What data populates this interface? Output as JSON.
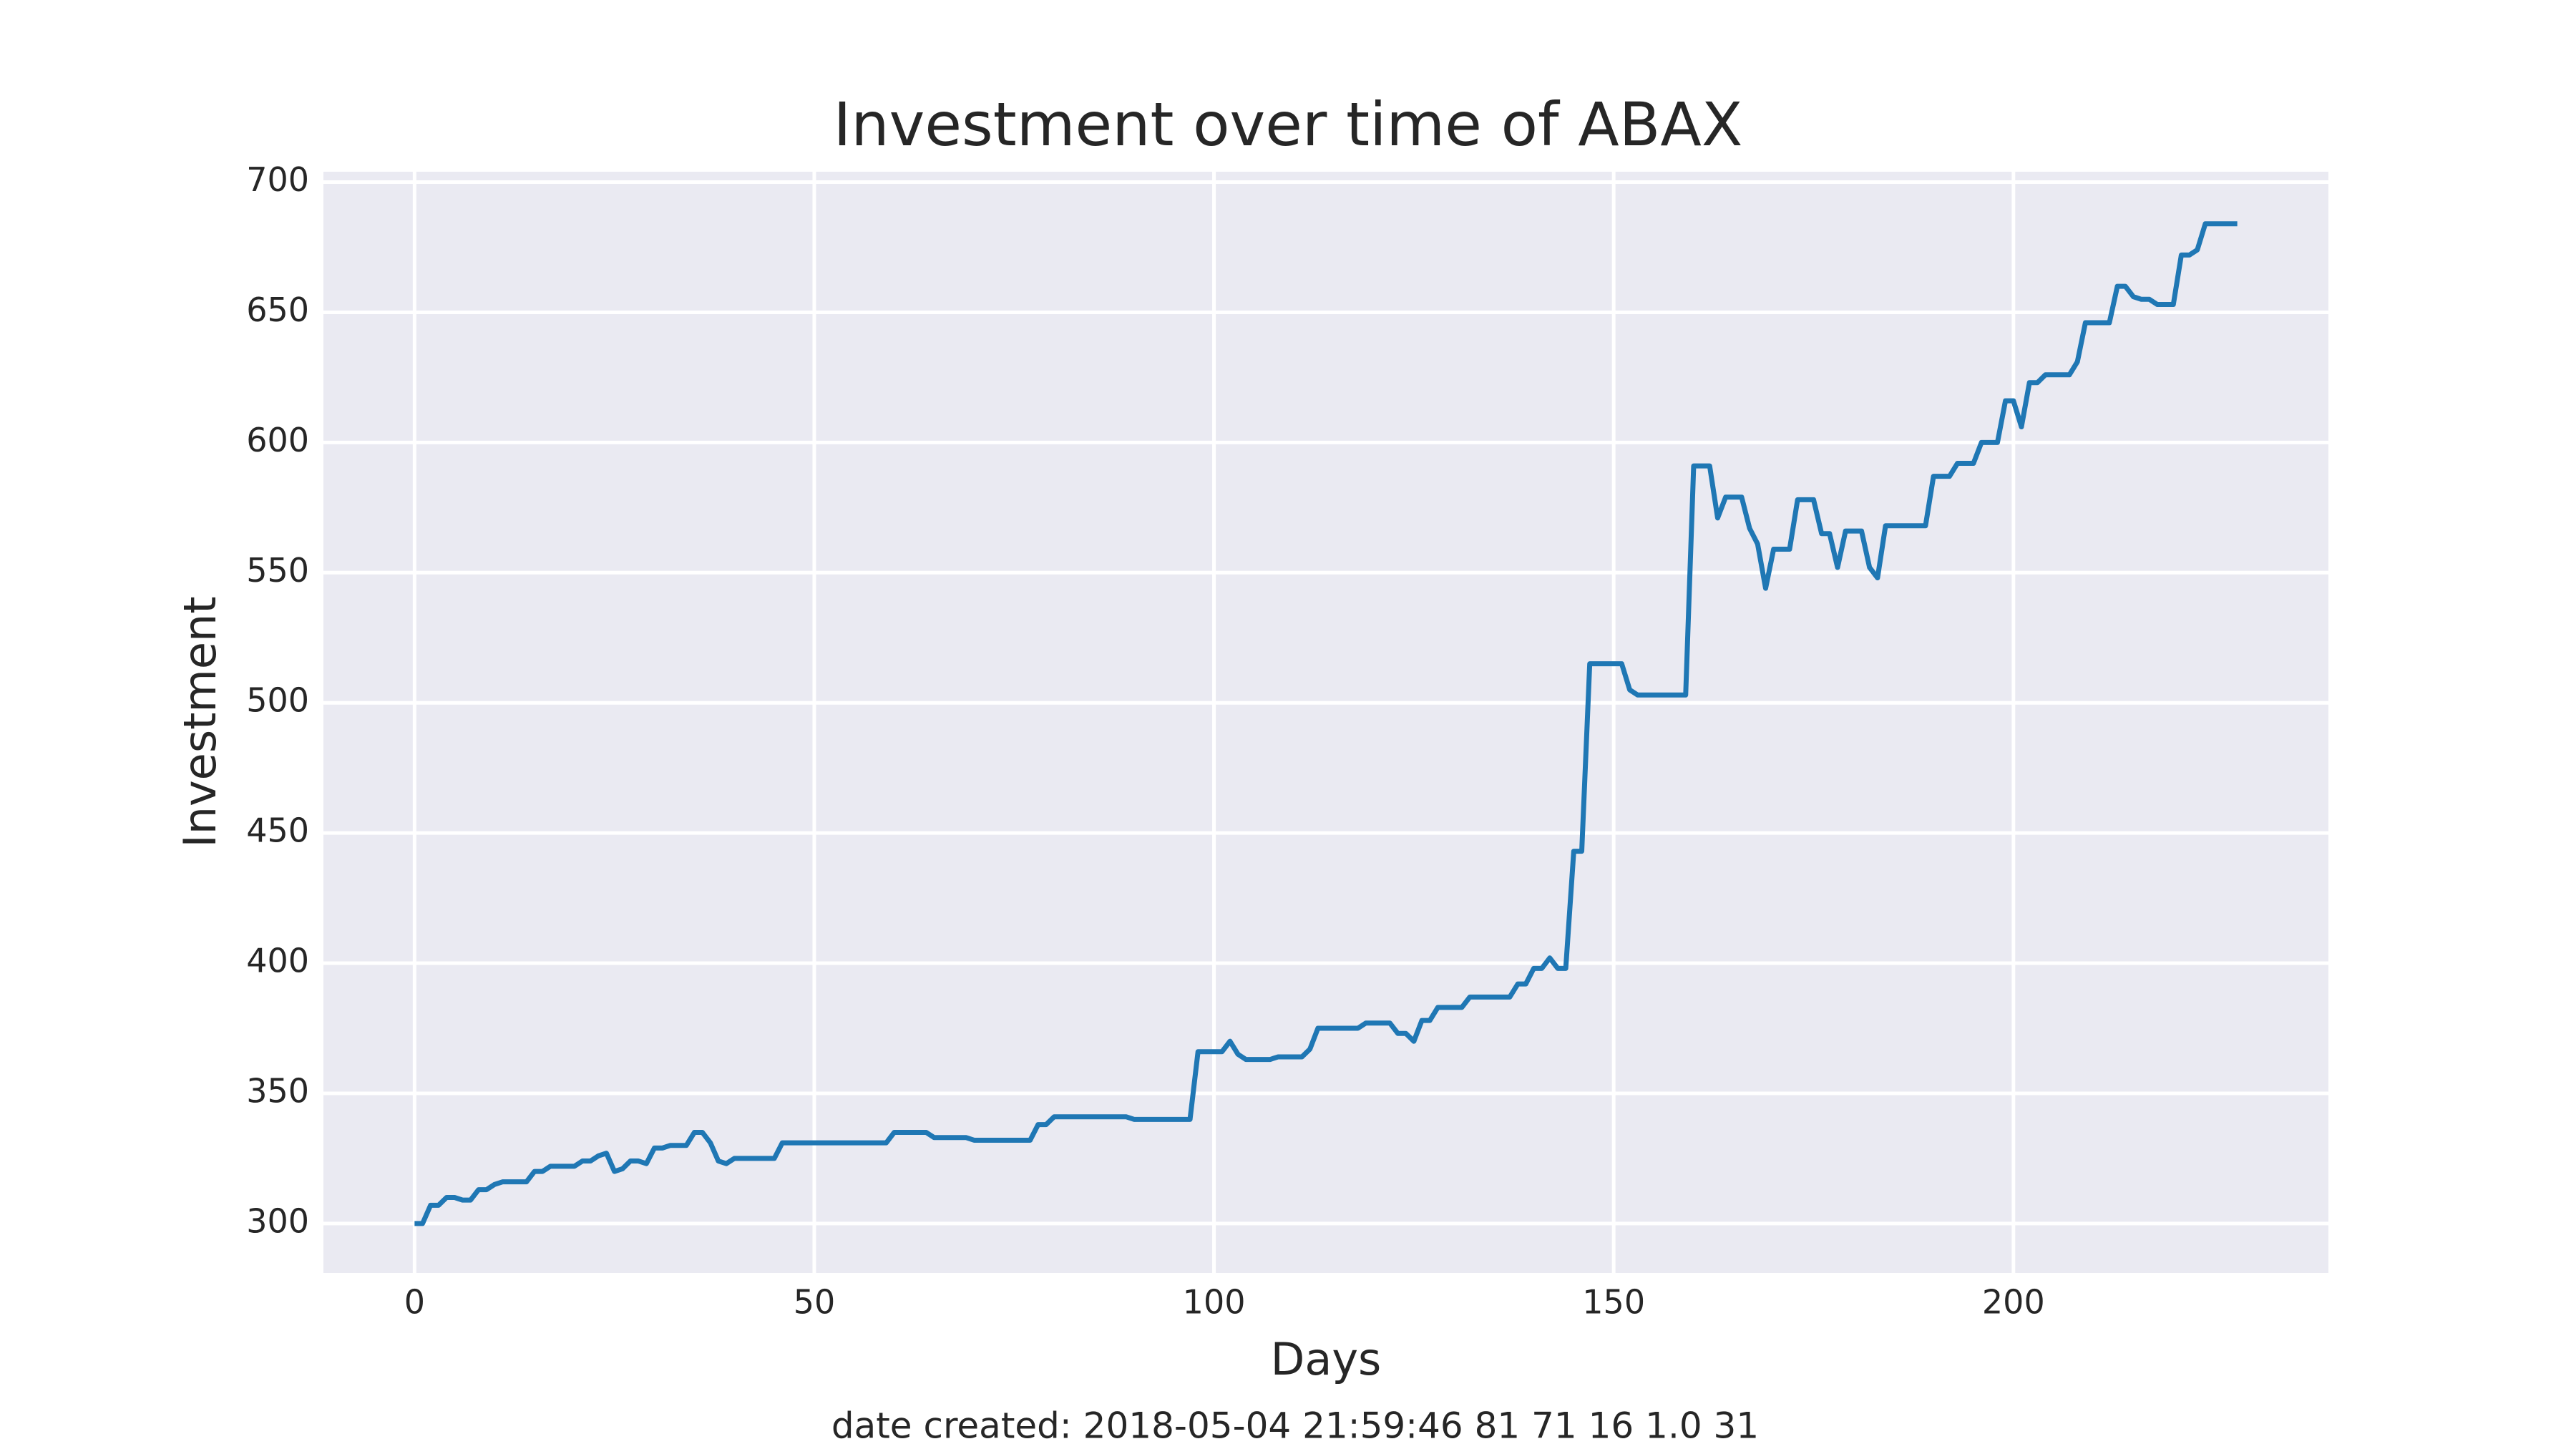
{
  "chart_data": {
    "type": "line",
    "title": "Investment over time of ABAX",
    "x_label": "Days",
    "y_label": "Investment",
    "footnote": "date created: 2018-05-04 21:59:46 81 71 16 1.0 31",
    "xlim": [
      -11.4,
      239.4
    ],
    "ylim": [
      281,
      704
    ],
    "xticks": [
      0,
      50,
      100,
      150,
      200
    ],
    "yticks": [
      300,
      350,
      400,
      450,
      500,
      550,
      600,
      650,
      700
    ],
    "grid": true,
    "background": "#eaeaf2",
    "x": [
      0,
      1,
      2,
      3,
      4,
      5,
      6,
      7,
      8,
      9,
      10,
      11,
      12,
      13,
      14,
      15,
      16,
      17,
      18,
      19,
      20,
      21,
      22,
      23,
      24,
      25,
      26,
      27,
      28,
      29,
      30,
      31,
      32,
      33,
      34,
      35,
      36,
      37,
      38,
      39,
      40,
      41,
      42,
      43,
      44,
      45,
      46,
      47,
      48,
      49,
      50,
      51,
      52,
      53,
      54,
      55,
      56,
      57,
      58,
      59,
      60,
      61,
      62,
      63,
      64,
      65,
      66,
      67,
      68,
      69,
      70,
      71,
      72,
      73,
      74,
      75,
      76,
      77,
      78,
      79,
      80,
      81,
      82,
      83,
      84,
      85,
      86,
      87,
      88,
      89,
      90,
      91,
      92,
      93,
      94,
      95,
      96,
      97,
      98,
      99,
      100,
      101,
      102,
      103,
      104,
      105,
      106,
      107,
      108,
      109,
      110,
      111,
      112,
      113,
      114,
      115,
      116,
      117,
      118,
      119,
      120,
      121,
      122,
      123,
      124,
      125,
      126,
      127,
      128,
      129,
      130,
      131,
      132,
      133,
      134,
      135,
      136,
      137,
      138,
      139,
      140,
      141,
      142,
      143,
      144,
      145,
      146,
      147,
      148,
      149,
      150,
      151,
      152,
      153,
      154,
      155,
      156,
      157,
      158,
      159,
      160,
      161,
      162,
      163,
      164,
      165,
      166,
      167,
      168,
      169,
      170,
      171,
      172,
      173,
      174,
      175,
      176,
      177,
      178,
      179,
      180,
      181,
      182,
      183,
      184,
      185,
      186,
      187,
      188,
      189,
      190,
      191,
      192,
      193,
      194,
      195,
      196,
      197,
      198,
      199,
      200,
      201,
      202,
      203,
      204,
      205,
      206,
      207,
      208,
      209,
      210,
      211,
      212,
      213,
      214,
      215,
      216,
      217,
      218,
      219,
      220,
      221,
      222,
      223,
      224,
      225,
      226,
      227,
      228
    ],
    "series": [
      {
        "color": "#1f77b4",
        "values": [
          300,
          300,
          307,
          307,
          310,
          310,
          309,
          309,
          313,
          313,
          315,
          316,
          316,
          316,
          316,
          320,
          320,
          322,
          322,
          322,
          322,
          324,
          324,
          326,
          327,
          320,
          321,
          324,
          324,
          323,
          329,
          329,
          330,
          330,
          330,
          335,
          335,
          331,
          324,
          323,
          325,
          325,
          325,
          325,
          325,
          325,
          331,
          331,
          331,
          331,
          331,
          331,
          331,
          331,
          331,
          331,
          331,
          331,
          331,
          331,
          335,
          335,
          335,
          335,
          335,
          333,
          333,
          333,
          333,
          333,
          332,
          332,
          332,
          332,
          332,
          332,
          332,
          332,
          338,
          338,
          341,
          341,
          341,
          341,
          341,
          341,
          341,
          341,
          341,
          341,
          340,
          340,
          340,
          340,
          340,
          340,
          340,
          340,
          366,
          366,
          366,
          366,
          370,
          365,
          363,
          363,
          363,
          363,
          364,
          364,
          364,
          364,
          367,
          375,
          375,
          375,
          375,
          375,
          375,
          377,
          377,
          377,
          377,
          373,
          373,
          370,
          378,
          378,
          383,
          383,
          383,
          383,
          387,
          387,
          387,
          387,
          387,
          387,
          392,
          392,
          398,
          398,
          402,
          398,
          398,
          443,
          443,
          515,
          515,
          515,
          515,
          515,
          505,
          503,
          503,
          503,
          503,
          503,
          503,
          503,
          591,
          591,
          591,
          571,
          579,
          579,
          579,
          567,
          561,
          544,
          559,
          559,
          559,
          578,
          578,
          578,
          565,
          565,
          552,
          566,
          566,
          566,
          552,
          548,
          568,
          568,
          568,
          568,
          568,
          568,
          587,
          587,
          587,
          592,
          592,
          592,
          600,
          600,
          600,
          616,
          616,
          606,
          623,
          623,
          626,
          626,
          626,
          626,
          631,
          646,
          646,
          646,
          646,
          660,
          660,
          656,
          655,
          655,
          653,
          653,
          653,
          672,
          672,
          674,
          684,
          684,
          684,
          684,
          684
        ]
      }
    ]
  }
}
